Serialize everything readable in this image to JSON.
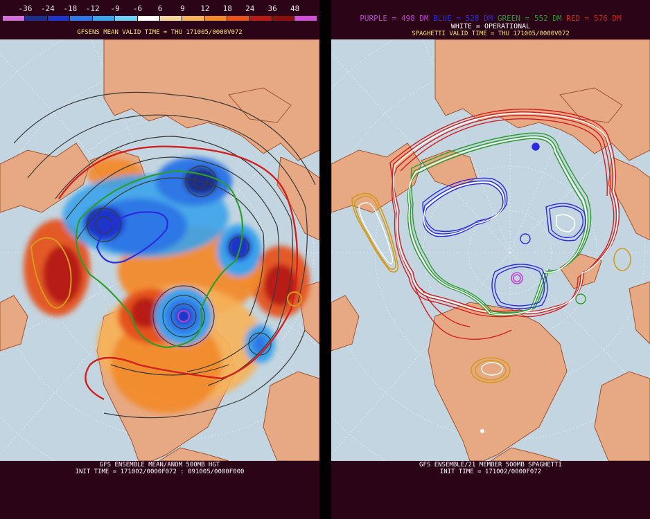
{
  "left_panel": {
    "legend": {
      "labels": [
        "-36",
        "-24",
        "-18",
        "-12",
        "-9",
        "-6",
        "6",
        "9",
        "12",
        "18",
        "24",
        "36",
        "48"
      ],
      "colors": [
        "#d070d8",
        "#1c2f8c",
        "#1d35c8",
        "#2e77e6",
        "#3aa3ea",
        "#6fd0f5",
        "#ffffff",
        "#f6d79f",
        "#f6b35a",
        "#f28a2a",
        "#e5531b",
        "#b81b16",
        "#8a1010",
        "#d050d8"
      ]
    },
    "title": "GFSENS MEAN VALID TIME = THU 171005/0000V072",
    "footer_line1": "GFS ENSEMBLE MEAN/ANOM 500MB HGT",
    "footer_line2": "INIT TIME = 171002/0000F072 : 091005/0000F000"
  },
  "right_panel": {
    "legend": {
      "purple": "PURPLE = 498 DM",
      "blue": "BLUE = 528 DM",
      "green": "GREEN = 552 DM",
      "red": "RED = 576 DM",
      "white": "WHITE = OPERATIONAL"
    },
    "title": "SPAGHETTI VALID TIME = THU 171005/0000V072",
    "footer_line1": "GFS ENSEMBLE/21 MEMBER 500MB SPAGHETTI",
    "footer_line2": "INIT TIME = 171002/0000F072"
  },
  "colors": {
    "ocean": "#c3d5e0",
    "land": "#e7a983",
    "background": "#2b0418",
    "title_text": "#f2e36b",
    "purple": "#c040d0",
    "blue": "#2a2ae0",
    "green": "#2b9d2b",
    "red": "#d21f1f",
    "white": "#ffffff",
    "orange": "#d49a1a"
  }
}
